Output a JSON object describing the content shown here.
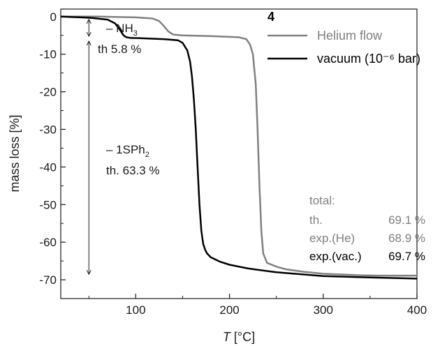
{
  "chart_data": {
    "type": "line",
    "xlabel_italic": "T",
    "xlabel_unit": " [°C]",
    "ylabel": "mass loss [%]",
    "xlim": [
      20,
      400
    ],
    "ylim": [
      -75,
      2
    ],
    "x_ticks": [
      100,
      200,
      300,
      400
    ],
    "y_ticks": [
      0,
      -10,
      -20,
      -30,
      -40,
      -50,
      -60,
      -70
    ],
    "grid": false,
    "legend_position": "top-right",
    "legend_title": "4",
    "series": [
      {
        "name": "Helium flow",
        "color": "#808080",
        "x": [
          20,
          60,
          100,
          118,
          125,
          130,
          135,
          140,
          150,
          180,
          210,
          218,
          222,
          225,
          228,
          230,
          232,
          234,
          236,
          240,
          250,
          260,
          280,
          300,
          320,
          340,
          360,
          380,
          400
        ],
        "y": [
          0,
          0,
          -0.2,
          -0.5,
          -1.2,
          -2.5,
          -4.0,
          -4.8,
          -5.0,
          -5.2,
          -5.5,
          -6.0,
          -7.5,
          -10.0,
          -18.0,
          -30.0,
          -45.0,
          -57.0,
          -63.0,
          -65.5,
          -66.5,
          -67.2,
          -67.9,
          -68.4,
          -68.6,
          -68.8,
          -68.9,
          -68.9,
          -68.9
        ]
      },
      {
        "name": "vacuum (10⁻⁶ bar)",
        "color": "#000000",
        "x": [
          20,
          50,
          70,
          78,
          83,
          87,
          90,
          95,
          100,
          130,
          145,
          150,
          155,
          158,
          160,
          162,
          164,
          166,
          168,
          170,
          172,
          174,
          176,
          180,
          190,
          200,
          220,
          250,
          300,
          350,
          400
        ],
        "y": [
          0,
          -0.3,
          -0.8,
          -1.8,
          -3.5,
          -5.0,
          -5.5,
          -5.7,
          -5.7,
          -6.0,
          -6.3,
          -7.0,
          -9.0,
          -12.0,
          -16.0,
          -22.0,
          -30.0,
          -40.0,
          -50.0,
          -57.0,
          -60.5,
          -62.0,
          -63.0,
          -64.0,
          -65.2,
          -66.0,
          -67.0,
          -68.0,
          -69.0,
          -69.4,
          -69.7
        ]
      }
    ],
    "annotations": {
      "nh3_prefix": "– NH",
      "nh3_sub": "3",
      "nh3_th": "th 5.8 %",
      "sph2_prefix": "– 1SPh",
      "sph2_sub": "2",
      "sph2_th": "th. 63.3 %"
    },
    "arrows": [
      {
        "x": 50,
        "y_from": 0,
        "y_to": -5.8
      },
      {
        "x": 50,
        "y_from": -5.8,
        "y_to": -69.1
      }
    ],
    "totals": {
      "heading": "total:",
      "rows": [
        {
          "label": "th.",
          "value": "69.1 %",
          "color": "#808080"
        },
        {
          "label": "exp.(He)",
          "value": "68.9 %",
          "color": "#808080"
        },
        {
          "label": "exp.(vac.)",
          "value": "69.7 %",
          "color": "#000000"
        }
      ]
    }
  }
}
